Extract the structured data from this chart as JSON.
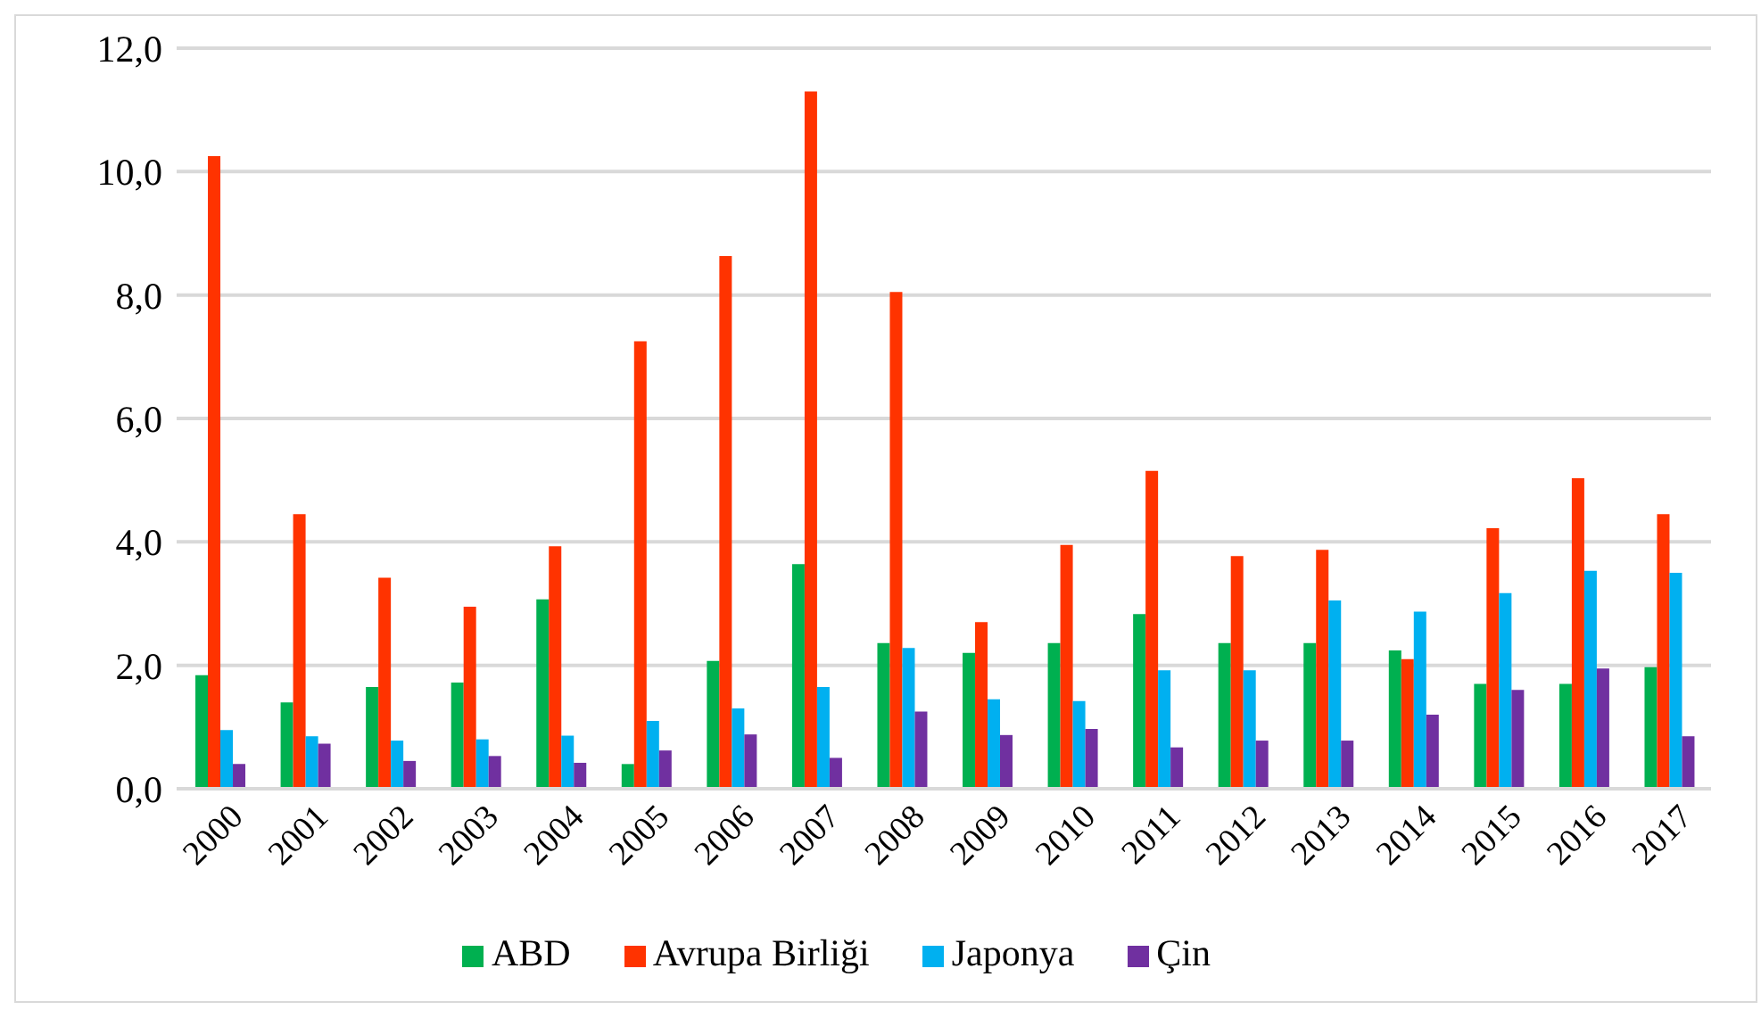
{
  "chart_data": {
    "type": "bar",
    "categories": [
      "2000",
      "2001",
      "2002",
      "2003",
      "2004",
      "2005",
      "2006",
      "2007",
      "2008",
      "2009",
      "2010",
      "2011",
      "2012",
      "2013",
      "2014",
      "2015",
      "2016",
      "2017"
    ],
    "series": [
      {
        "name": "ABD",
        "color": "#00b050",
        "values": [
          1.84,
          1.4,
          1.65,
          1.72,
          3.07,
          0.4,
          2.07,
          3.64,
          2.36,
          2.2,
          2.36,
          2.83,
          2.36,
          2.36,
          2.24,
          1.7,
          1.7,
          1.97
        ]
      },
      {
        "name": "Avrupa Birliği",
        "color": "#ff3300",
        "values": [
          10.25,
          4.45,
          3.42,
          2.95,
          3.93,
          7.25,
          8.63,
          11.3,
          8.05,
          2.7,
          3.95,
          5.15,
          3.77,
          3.87,
          2.1,
          4.22,
          5.03,
          4.45
        ]
      },
      {
        "name": "Japonya",
        "color": "#00b0f0",
        "values": [
          0.95,
          0.85,
          0.78,
          0.8,
          0.86,
          1.1,
          1.3,
          1.65,
          2.28,
          1.45,
          1.42,
          1.92,
          1.92,
          3.05,
          2.87,
          3.17,
          3.53,
          3.5
        ]
      },
      {
        "name": "Çin",
        "color": "#7030a0",
        "values": [
          0.4,
          0.73,
          0.45,
          0.53,
          0.42,
          0.62,
          0.88,
          0.5,
          1.25,
          0.87,
          0.97,
          0.67,
          0.78,
          0.78,
          1.2,
          1.6,
          1.95,
          0.85
        ]
      }
    ],
    "ylim": [
      0,
      12
    ],
    "yticks": [
      {
        "value": 0,
        "label": "0,0"
      },
      {
        "value": 2,
        "label": "2,0"
      },
      {
        "value": 4,
        "label": "4,0"
      },
      {
        "value": 6,
        "label": "6,0"
      },
      {
        "value": 8,
        "label": "8,0"
      },
      {
        "value": 10,
        "label": "10,0"
      },
      {
        "value": 12,
        "label": "12,0"
      }
    ],
    "grid": "y",
    "legend": "bottom"
  }
}
